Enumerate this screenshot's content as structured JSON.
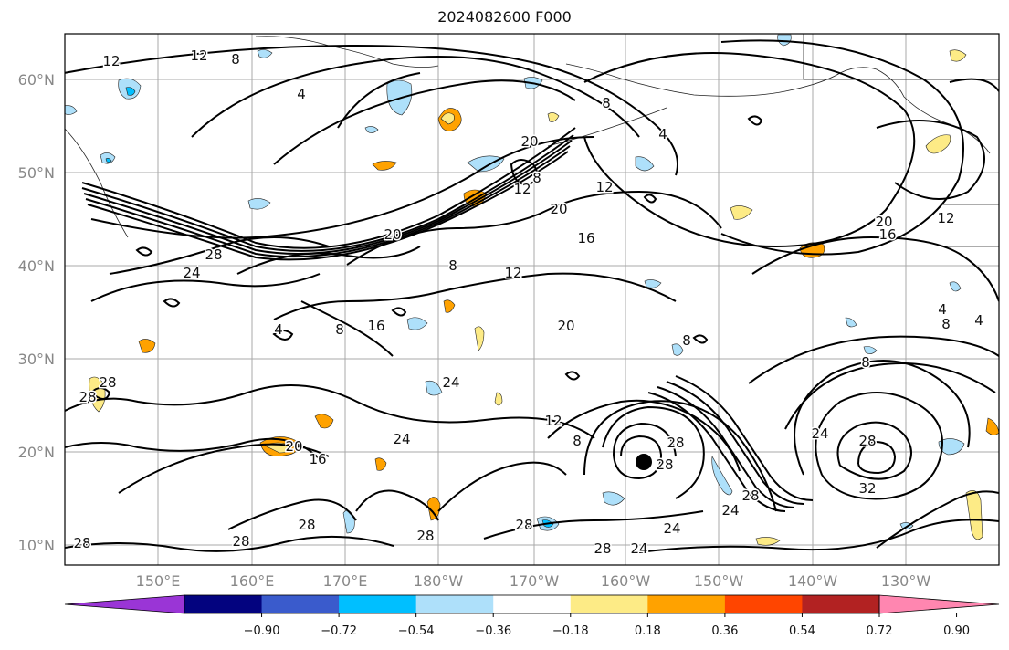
{
  "title": "2024082600 F000",
  "lat_labels": [
    "60°N",
    "50°N",
    "40°N",
    "30°N",
    "20°N",
    "10°N"
  ],
  "lon_labels": [
    "150°E",
    "160°E",
    "170°E",
    "180°W",
    "170°W",
    "160°W",
    "150°W",
    "140°W",
    "130°W"
  ],
  "colorbar": {
    "ticks": [
      "−0.90",
      "−0.72",
      "−0.54",
      "−0.36",
      "−0.18",
      "0.18",
      "0.36",
      "0.54",
      "0.72",
      "0.90"
    ],
    "colors": [
      "#9a35d6",
      "#03037f",
      "#3a5bcc",
      "#00bfff",
      "#aee0fa",
      "#ffffff",
      "#fdeb86",
      "#ffa200",
      "#ff4500",
      "#b22222",
      "#ff86b0"
    ]
  },
  "contour_labels": [
    "12",
    "12",
    "8",
    "4",
    "20",
    "12",
    "8",
    "20",
    "16",
    "12",
    "4",
    "8",
    "20",
    "16",
    "12",
    "28",
    "24",
    "20",
    "4",
    "8",
    "8",
    "12",
    "16",
    "20",
    "24",
    "28",
    "28",
    "20",
    "16",
    "24",
    "12",
    "8",
    "28",
    "28",
    "8",
    "24",
    "28",
    "32",
    "28",
    "24",
    "28",
    "28",
    "24",
    "28",
    "28",
    "4",
    "4",
    "8",
    "28",
    "28",
    "24",
    "8"
  ],
  "marker": "storm-center"
}
